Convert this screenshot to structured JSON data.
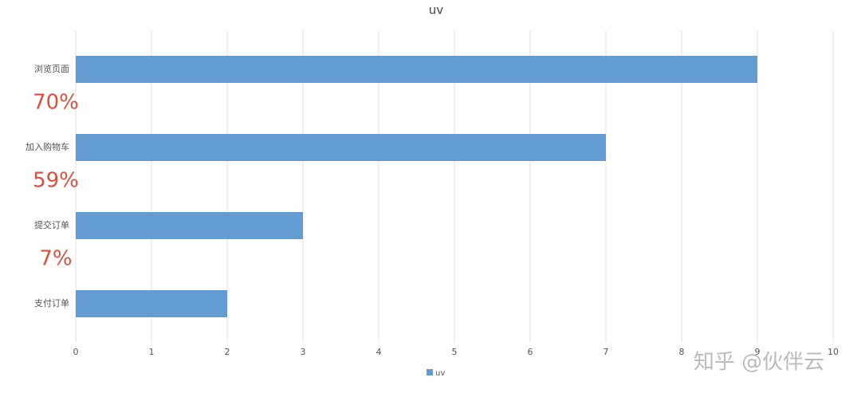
{
  "chart_data": {
    "type": "hbar",
    "title": "uv",
    "categories": [
      "浏览页面",
      "加入购物车",
      "提交订单",
      "支付订单"
    ],
    "series": [
      {
        "name": "uv",
        "color": "#639cd2",
        "values": [
          9,
          7,
          3,
          2
        ]
      }
    ],
    "xlim": [
      0,
      10
    ],
    "xticks": [
      0,
      1,
      2,
      3,
      4,
      5,
      6,
      7,
      8,
      9,
      10
    ],
    "grid": true,
    "legend": "bottom",
    "annotations": [
      "70%",
      "59%",
      "7%"
    ],
    "annotation_color": "#d9503f",
    "watermark": "知乎 @伙伴云"
  }
}
